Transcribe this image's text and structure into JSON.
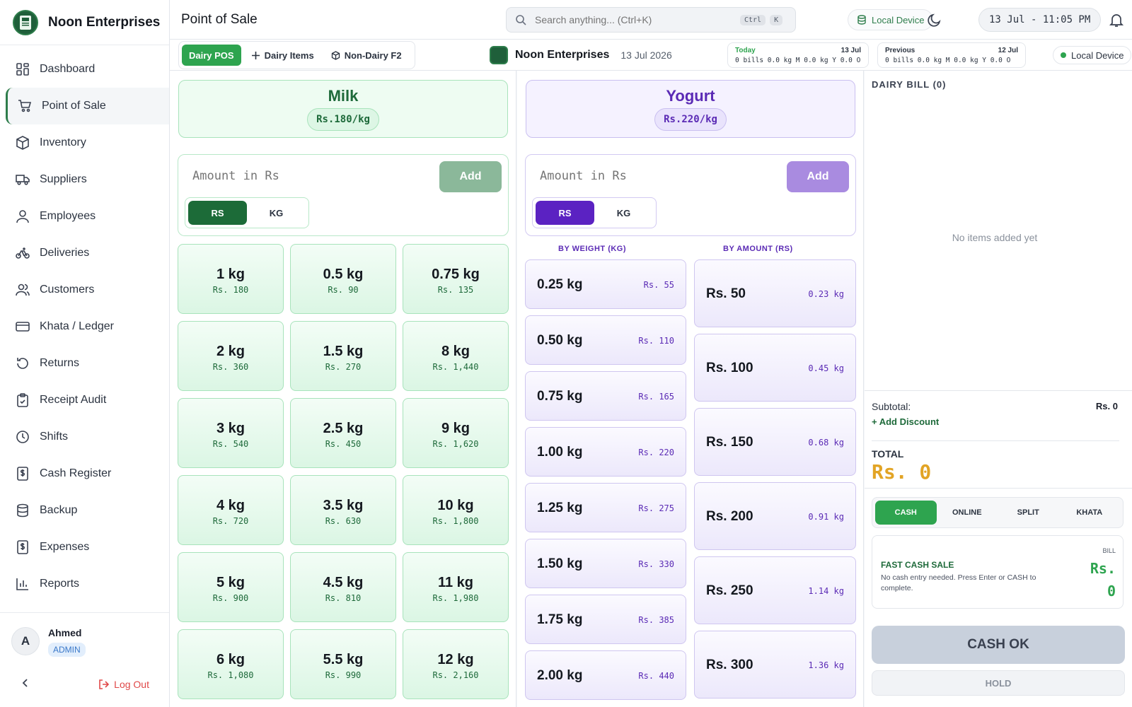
{
  "brand": {
    "name": "Noon Enterprises",
    "logo_text": "POS"
  },
  "sidebar": {
    "items": [
      {
        "label": "Dashboard",
        "icon": "grid-icon"
      },
      {
        "label": "Point of Sale",
        "icon": "cart-icon",
        "active": true
      },
      {
        "label": "Inventory",
        "icon": "box-icon"
      },
      {
        "label": "Suppliers",
        "icon": "truck-icon"
      },
      {
        "label": "Employees",
        "icon": "user-icon"
      },
      {
        "label": "Deliveries",
        "icon": "bike-icon"
      },
      {
        "label": "Customers",
        "icon": "users-icon"
      },
      {
        "label": "Khata / Ledger",
        "icon": "card-icon"
      },
      {
        "label": "Returns",
        "icon": "undo-icon"
      },
      {
        "label": "Receipt Audit",
        "icon": "clipboard-icon"
      },
      {
        "label": "Shifts",
        "icon": "clock-icon"
      },
      {
        "label": "Cash Register",
        "icon": "dollar-doc-icon"
      },
      {
        "label": "Backup",
        "icon": "database-icon"
      },
      {
        "label": "Expenses",
        "icon": "dollar-doc-icon"
      },
      {
        "label": "Reports",
        "icon": "bar-chart-icon"
      }
    ],
    "user": {
      "initial": "A",
      "name": "Ahmed",
      "role": "ADMIN"
    },
    "logout_label": "Log Out"
  },
  "header": {
    "title": "Point of Sale",
    "search_placeholder": "Search anything... (Ctrl+K)",
    "kbd_ctrl": "Ctrl",
    "kbd_k": "K",
    "device_label": "Local Device",
    "datetime": "13 Jul - 11:05 PM"
  },
  "subbar": {
    "tabs": [
      {
        "label": "Dairy POS",
        "active": true
      },
      {
        "label": "Dairy Items"
      },
      {
        "label": "Non-Dairy F2"
      }
    ],
    "center_name": "Noon Enterprises",
    "center_date": "13 Jul 2026",
    "today": {
      "label": "Today",
      "date": "13 Jul",
      "info": "0 bills  0.0 kg M 0.0 kg Y 0.0 O"
    },
    "previous": {
      "label": "Previous",
      "date": "12 Jul",
      "info": "0 bills  0.0 kg M 0.0 kg Y 0.0 O"
    },
    "device_label": "Local Device"
  },
  "milk": {
    "name": "Milk",
    "price": "Rs.180/kg",
    "amount_placeholder": "Amount in Rs",
    "add_label": "Add",
    "unit_rs": "RS",
    "unit_kg": "KG",
    "buttons": [
      {
        "w": "1 kg",
        "p": "Rs. 180"
      },
      {
        "w": "0.5 kg",
        "p": "Rs. 90"
      },
      {
        "w": "0.75 kg",
        "p": "Rs. 135"
      },
      {
        "w": "2 kg",
        "p": "Rs. 360"
      },
      {
        "w": "1.5 kg",
        "p": "Rs. 270"
      },
      {
        "w": "8 kg",
        "p": "Rs. 1,440"
      },
      {
        "w": "3 kg",
        "p": "Rs. 540"
      },
      {
        "w": "2.5 kg",
        "p": "Rs. 450"
      },
      {
        "w": "9 kg",
        "p": "Rs. 1,620"
      },
      {
        "w": "4 kg",
        "p": "Rs. 720"
      },
      {
        "w": "3.5 kg",
        "p": "Rs. 630"
      },
      {
        "w": "10 kg",
        "p": "Rs. 1,800"
      },
      {
        "w": "5 kg",
        "p": "Rs. 900"
      },
      {
        "w": "4.5 kg",
        "p": "Rs. 810"
      },
      {
        "w": "11 kg",
        "p": "Rs. 1,980"
      },
      {
        "w": "6 kg",
        "p": "Rs. 1,080"
      },
      {
        "w": "5.5 kg",
        "p": "Rs. 990"
      },
      {
        "w": "12 kg",
        "p": "Rs. 2,160"
      }
    ]
  },
  "yogurt": {
    "name": "Yogurt",
    "price": "Rs.220/kg",
    "amount_placeholder": "Amount in Rs",
    "add_label": "Add",
    "unit_rs": "RS",
    "unit_kg": "KG",
    "weight_heading": "BY WEIGHT (KG)",
    "amount_heading": "BY AMOUNT (RS)",
    "by_weight": [
      {
        "w": "0.25 kg",
        "p": "Rs. 55"
      },
      {
        "w": "0.50 kg",
        "p": "Rs. 110"
      },
      {
        "w": "0.75 kg",
        "p": "Rs. 165"
      },
      {
        "w": "1.00 kg",
        "p": "Rs. 220"
      },
      {
        "w": "1.25 kg",
        "p": "Rs. 275"
      },
      {
        "w": "1.50 kg",
        "p": "Rs. 330"
      },
      {
        "w": "1.75 kg",
        "p": "Rs. 385"
      },
      {
        "w": "2.00 kg",
        "p": "Rs. 440"
      }
    ],
    "by_amount": [
      {
        "w": "Rs. 50",
        "p": "0.23 kg"
      },
      {
        "w": "Rs. 100",
        "p": "0.45 kg"
      },
      {
        "w": "Rs. 150",
        "p": "0.68 kg"
      },
      {
        "w": "Rs. 200",
        "p": "0.91 kg"
      },
      {
        "w": "Rs. 250",
        "p": "1.14 kg"
      },
      {
        "w": "Rs. 300",
        "p": "1.36 kg"
      }
    ]
  },
  "bill": {
    "title": "DAIRY BILL (0)",
    "empty_text": "No items added yet",
    "subtotal_label": "Subtotal:",
    "subtotal_value": "Rs. 0",
    "discount_label": "+ Add Discount",
    "total_label": "TOTAL",
    "total_value": "Rs. 0",
    "pay_tabs": [
      "CASH",
      "ONLINE",
      "SPLIT",
      "KHATA"
    ],
    "fast_title": "FAST CASH SALE",
    "fast_desc": "No cash entry needed. Press Enter or CASH to complete.",
    "fast_bill_label": "BILL",
    "fast_rs": "Rs.",
    "fast_value": "0",
    "cashok_label": "CASH OK",
    "hold_label": "HOLD"
  },
  "colors": {
    "accent_green": "#2ea44f",
    "yogurt_purple": "#5b22c2",
    "total_gold": "#e2a425"
  }
}
